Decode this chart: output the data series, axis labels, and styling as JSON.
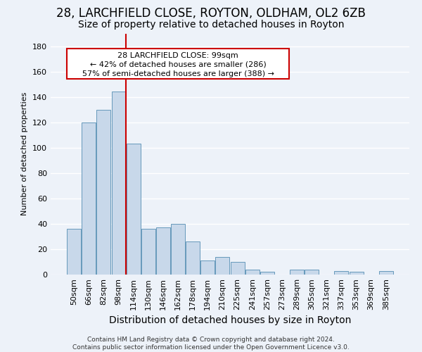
{
  "title1": "28, LARCHFIELD CLOSE, ROYTON, OLDHAM, OL2 6ZB",
  "title2": "Size of property relative to detached houses in Royton",
  "xlabel": "Distribution of detached houses by size in Royton",
  "ylabel": "Number of detached properties",
  "footer1": "Contains HM Land Registry data © Crown copyright and database right 2024.",
  "footer2": "Contains public sector information licensed under the Open Government Licence v3.0.",
  "annotation_title": "28 LARCHFIELD CLOSE: 99sqm",
  "annotation_line1": "← 42% of detached houses are smaller (286)",
  "annotation_line2": "57% of semi-detached houses are larger (388) →",
  "bar_values": [
    36,
    120,
    130,
    144,
    103,
    36,
    37,
    40,
    26,
    11,
    14,
    10,
    4,
    2,
    0,
    4,
    4,
    0,
    3,
    2,
    0,
    3
  ],
  "bar_labels": [
    "50sqm",
    "66sqm",
    "82sqm",
    "98sqm",
    "114sqm",
    "130sqm",
    "146sqm",
    "162sqm",
    "178sqm",
    "194sqm",
    "210sqm",
    "225sqm",
    "241sqm",
    "257sqm",
    "273sqm",
    "289sqm",
    "305sqm",
    "321sqm",
    "337sqm",
    "353sqm",
    "369sqm",
    "385sqm"
  ],
  "bar_color": "#c8d8ea",
  "bar_edge_color": "#6699bb",
  "red_line_bin": 3,
  "ylim": [
    0,
    190
  ],
  "yticks": [
    0,
    20,
    40,
    60,
    80,
    100,
    120,
    140,
    160,
    180
  ],
  "bg_color": "#edf2f9",
  "grid_color": "#ffffff",
  "title1_fontsize": 12,
  "title2_fontsize": 10,
  "ylabel_fontsize": 8,
  "xlabel_fontsize": 10,
  "tick_fontsize": 8,
  "annot_fontsize": 8,
  "footer_fontsize": 6.5
}
